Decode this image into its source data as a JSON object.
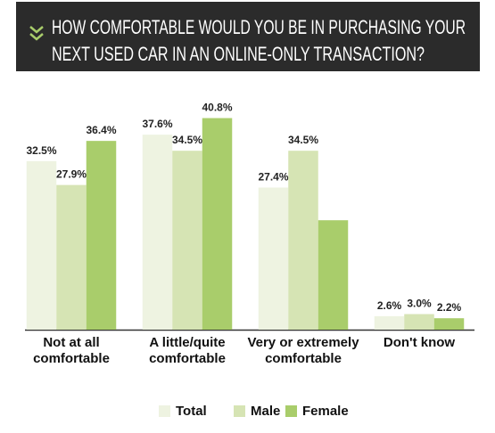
{
  "chart_data": {
    "type": "bar",
    "title": [
      "HOW COMFORTABLE WOULD YOU BE IN PURCHASING YOUR",
      "NEXT USED CAR IN AN ONLINE-ONLY TRANSACTION?"
    ],
    "categories": [
      "Not at all comfortable",
      "A little/quite comfortable",
      "Very or extremely comfortable",
      "Don't know"
    ],
    "series": [
      {
        "name": "Total",
        "color": "#eef3e1",
        "values": [
          32.5,
          37.6,
          27.4,
          2.6
        ],
        "value_labels": [
          "32.5%",
          "37.6%",
          "27.4%",
          "2.6%"
        ]
      },
      {
        "name": "Male",
        "color": "#d6e4b4",
        "values": [
          27.9,
          34.5,
          34.5,
          3.0
        ],
        "value_labels": [
          "27.9%",
          "34.5%",
          "34.5%",
          "3.0%"
        ]
      },
      {
        "name": "Female",
        "color": "#a9cd6b",
        "values": [
          36.4,
          40.8,
          21.1,
          2.2
        ],
        "value_labels": [
          "36.4%",
          "40.8%",
          null,
          "2.2%"
        ]
      }
    ]
  }
}
